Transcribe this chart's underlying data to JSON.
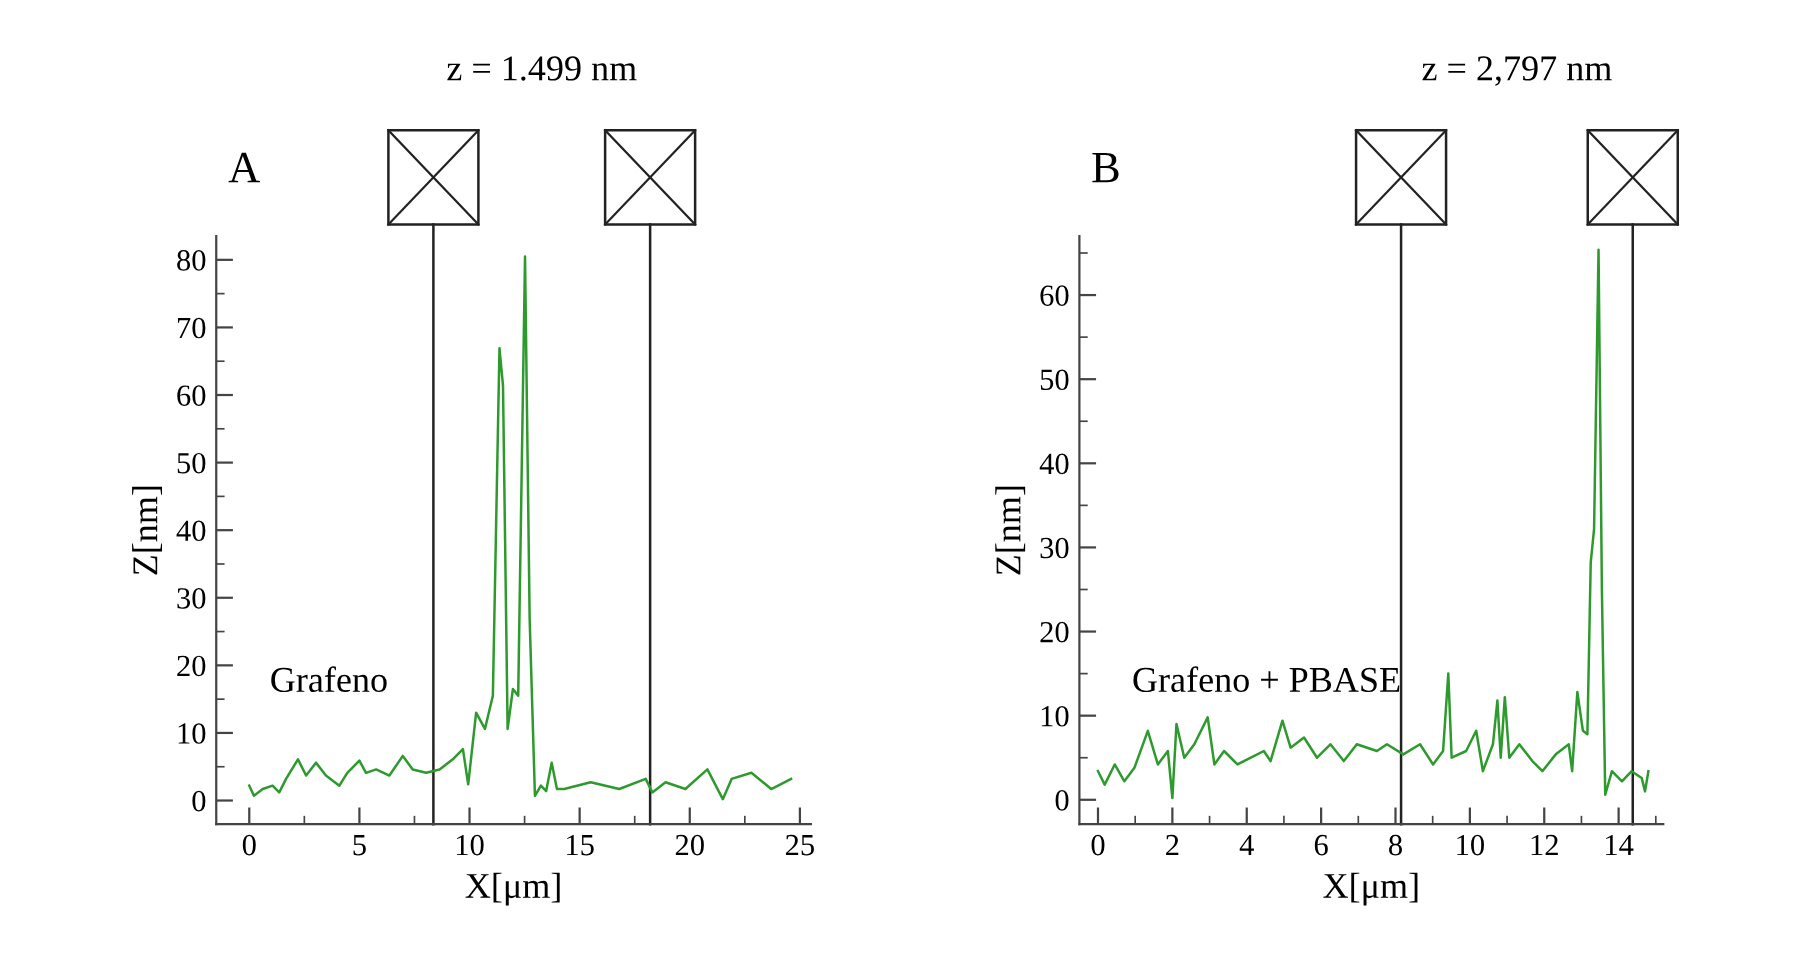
{
  "chart_data": [
    {
      "type": "line",
      "title": "A",
      "xlabel": "X[μm]",
      "ylabel": "Z[nm]",
      "x": [
        0,
        0.21,
        0.61,
        1.06,
        1.36,
        1.67,
        2.21,
        2.58,
        3.03,
        3.48,
        4.09,
        4.45,
        5.0,
        5.3,
        5.76,
        6.36,
        6.97,
        7.42,
        8.03,
        8.64,
        9.24,
        9.7,
        9.94,
        10.3,
        10.7,
        11.06,
        11.36,
        11.52,
        11.73,
        11.97,
        12.21,
        12.52,
        12.73,
        12.97,
        13.24,
        13.48,
        13.73,
        13.97,
        14.3,
        15.5,
        16.8,
        18.0,
        18.3,
        18.9,
        19.8,
        20.8,
        21.5,
        21.9,
        22.8,
        23.7,
        24.6
      ],
      "series": [
        {
          "color": "#2e9a2e",
          "values": [
            2.2,
            0.7,
            1.7,
            2.2,
            1.2,
            3.2,
            6.1,
            3.7,
            5.6,
            3.7,
            2.2,
            4.1,
            5.9,
            4.1,
            4.6,
            3.7,
            6.6,
            4.6,
            4.1,
            4.6,
            6.1,
            7.6,
            2.4,
            13.0,
            10.6,
            15.5,
            66.9,
            61.4,
            10.6,
            16.5,
            15.5,
            80.5,
            26.9,
            0.7,
            2.2,
            1.4,
            5.6,
            1.7,
            1.7,
            2.7,
            1.7,
            3.2,
            1.2,
            2.7,
            1.7,
            4.6,
            0.2,
            3.2,
            4.1,
            1.7,
            3.2
          ]
        }
      ],
      "xlim": [
        -1.5,
        25.5
      ],
      "xticks": [
        0,
        5,
        10,
        15,
        20,
        25
      ],
      "ylim": [
        -3.5,
        83.5
      ],
      "yticks": [
        0,
        10,
        20,
        30,
        40,
        50,
        60,
        70,
        80
      ],
      "ref_lines": [
        {
          "axis": "x",
          "value": 8.36,
          "label": null,
          "color": "#222222"
        },
        {
          "axis": "x",
          "value": 18.2,
          "label": null,
          "color": "#222222"
        }
      ],
      "annotations": [
        "z = 1.499 nm",
        "Grafeno"
      ],
      "grid": false,
      "legend": false
    },
    {
      "type": "line",
      "title": "B",
      "xlabel": "X[μm]",
      "ylabel": "Z[nm]",
      "x": [
        0,
        0.18,
        0.45,
        0.71,
        0.98,
        1.34,
        1.61,
        1.88,
        2.0,
        2.11,
        2.32,
        2.59,
        2.95,
        3.13,
        3.39,
        3.75,
        4.11,
        4.46,
        4.64,
        4.96,
        5.18,
        5.54,
        5.89,
        6.25,
        6.61,
        6.96,
        7.5,
        7.77,
        8.21,
        8.66,
        9.01,
        9.28,
        9.42,
        9.51,
        9.9,
        10.17,
        10.35,
        10.62,
        10.74,
        10.83,
        10.94,
        11.06,
        11.33,
        11.68,
        11.95,
        12.31,
        12.66,
        12.75,
        12.89,
        13.04,
        13.16,
        13.25,
        13.34,
        13.46,
        13.55,
        13.64,
        13.82,
        14.09,
        14.35,
        14.62,
        14.71,
        14.8
      ],
      "series": [
        {
          "color": "#2e9a2e",
          "values": [
            3.4,
            1.8,
            4.2,
            2.2,
            3.8,
            8.2,
            4.2,
            5.8,
            0.2,
            9.0,
            5.0,
            6.6,
            9.8,
            4.2,
            5.8,
            4.2,
            5.0,
            5.8,
            4.6,
            9.4,
            6.2,
            7.4,
            5.0,
            6.6,
            4.6,
            6.6,
            5.8,
            6.6,
            5.4,
            6.6,
            4.2,
            5.8,
            15.0,
            5.0,
            5.8,
            8.2,
            3.4,
            6.6,
            11.8,
            5.0,
            12.2,
            5.0,
            6.6,
            4.6,
            3.4,
            5.4,
            6.6,
            3.4,
            12.8,
            8.2,
            7.8,
            28.2,
            32.2,
            65.4,
            25.0,
            0.6,
            3.4,
            2.2,
            3.4,
            2.6,
            1.0,
            3.4
          ]
        }
      ],
      "xlim": [
        -0.5,
        15.2
      ],
      "xticks": [
        0,
        2,
        4,
        6,
        8,
        10,
        12,
        14
      ],
      "ylim": [
        -2.9,
        67
      ],
      "yticks": [
        0,
        10,
        20,
        30,
        40,
        50,
        60
      ],
      "ref_lines": [
        {
          "axis": "x",
          "value": 8.15,
          "label": null,
          "color": "#222222"
        },
        {
          "axis": "x",
          "value": 14.38,
          "label": null,
          "color": "#222222"
        }
      ],
      "annotations": [
        "z = 2,797 nm",
        "Grafeno + PBASE"
      ],
      "grid": false,
      "legend": false
    }
  ]
}
